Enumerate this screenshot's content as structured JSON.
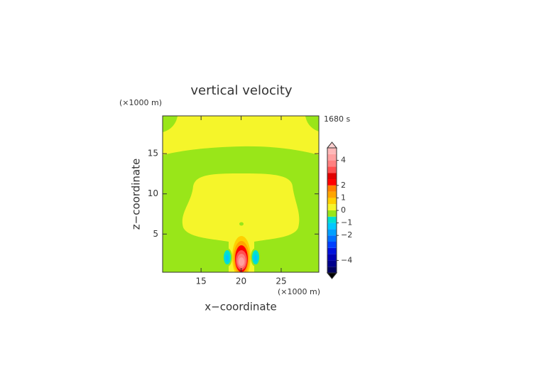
{
  "chart_data": {
    "type": "contour",
    "title": "vertical velocity",
    "x_label": "x−coordinate",
    "y_label": "z−coordinate",
    "x_unit": "(×1000 m)",
    "y_unit": "(×1000 m)",
    "time_label": "1680 s",
    "xlim": [
      10.2,
      29.7
    ],
    "xticks": [
      15,
      20,
      25
    ],
    "ylim": [
      0.25,
      19.7
    ],
    "yticks": [
      5,
      10,
      15
    ],
    "colorbar": {
      "lim": [
        -5,
        5
      ],
      "levels": [
        -5,
        -4.5,
        -4,
        -3.5,
        -3,
        -2.5,
        -2,
        -1.5,
        -1,
        -0.5,
        0,
        0.5,
        1,
        1.5,
        2,
        2.5,
        3,
        3.5,
        4,
        4.5,
        5
      ],
      "colors": [
        "#000060",
        "#00008c",
        "#0000b4",
        "#0010dc",
        "#0040ff",
        "#0070ff",
        "#00a0ff",
        "#00c8ff",
        "#00e0d0",
        "#99e619",
        "#f5f52a",
        "#ffd000",
        "#ffa500",
        "#ff8000",
        "#ff0000",
        "#e00000",
        "#ff5050",
        "#ff8080",
        "#ffa0a0",
        "#ffb8b8"
      ],
      "over_color": "#ffd0d0",
      "under_color": "#000000",
      "ticks": [
        {
          "value": -4,
          "label": "−4"
        },
        {
          "value": -2,
          "label": "−2"
        },
        {
          "value": -1,
          "label": "−1"
        },
        0,
        1,
        2,
        4
      ]
    }
  }
}
